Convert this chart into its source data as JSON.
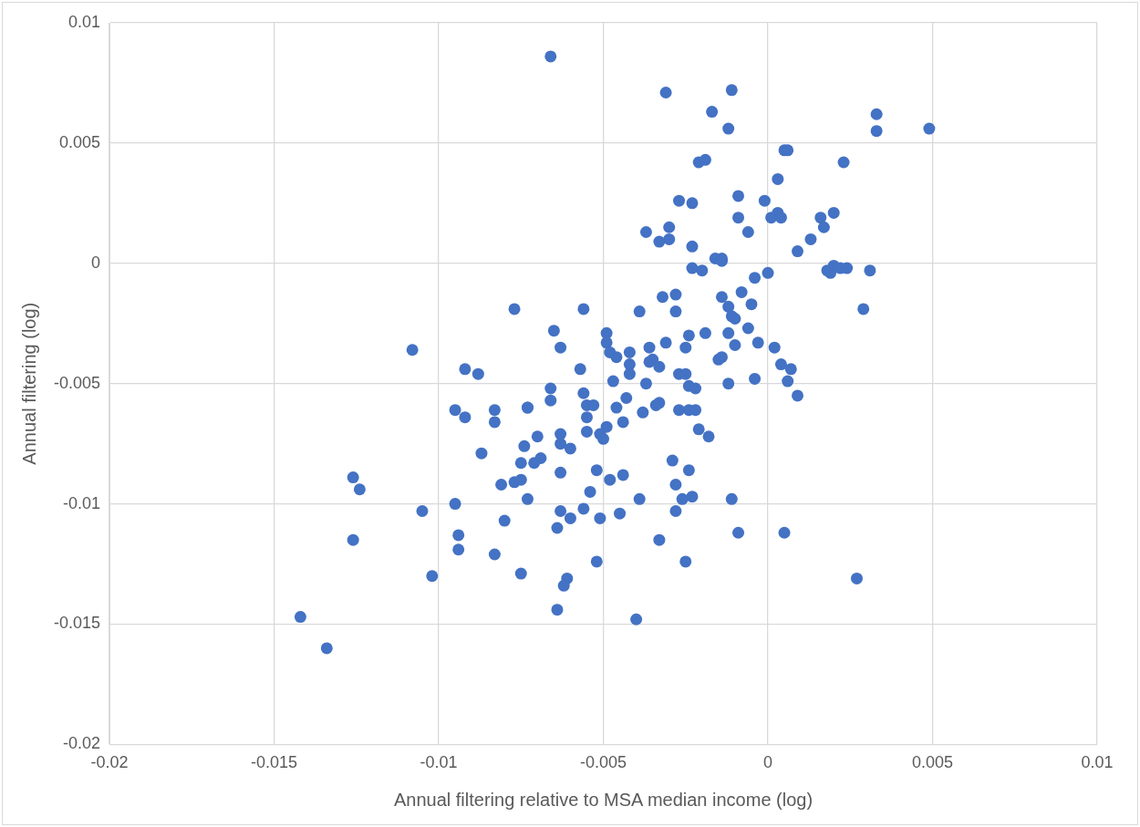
{
  "chart_data": {
    "type": "scatter",
    "xlabel": "Annual filtering relative to MSA median income (log)",
    "ylabel": "Annual filtering (log)",
    "xlim": [
      -0.02,
      0.01
    ],
    "xticks": [
      -0.02,
      -0.015,
      -0.01,
      -0.005,
      0,
      0.005,
      0.01
    ],
    "ylim": [
      -0.02,
      0.01
    ],
    "yticks": [
      -0.02,
      -0.015,
      -0.01,
      -0.005,
      0,
      0.005,
      0.01
    ],
    "grid": true,
    "marker": "circle",
    "series": [
      {
        "color": "#4472c4",
        "x": [
          -0.0066,
          -0.0031,
          -0.0011,
          -0.0017,
          -0.0012,
          0.0033,
          0.0033,
          0.0049,
          0.0005,
          0.0006,
          -0.0021,
          -0.0019,
          0.0023,
          0.0003,
          -0.0027,
          -0.0023,
          -0.0009,
          -0.0001,
          0.0003,
          0.0001,
          0.0004,
          -0.0009,
          0.0016,
          0.002,
          0.0017,
          -0.003,
          -0.003,
          -0.0037,
          -0.0033,
          -0.0006,
          -0.0023,
          0.0013,
          0.0009,
          -0.0023,
          -0.002,
          -0.0016,
          -0.0014,
          -0.0014,
          0,
          -0.0004,
          0.0018,
          0.0019,
          0.002,
          0.0022,
          0.0024,
          0.0031,
          0.0029,
          -0.0008,
          -0.0028,
          -0.0032,
          -0.0014,
          -0.0012,
          -0.0011,
          -0.0005,
          -0.0006,
          -0.0003,
          0.0002,
          -0.001,
          -0.0012,
          -0.0019,
          -0.0024,
          -0.0028,
          -0.0031,
          -0.0039,
          -0.0049,
          -0.0049,
          -0.0048,
          -0.0046,
          -0.0042,
          -0.0042,
          -0.0042,
          -0.0047,
          -0.0036,
          -0.0035,
          -0.0033,
          -0.0036,
          -0.0025,
          -0.0015,
          -0.0014,
          -0.001,
          -0.0027,
          -0.0025,
          -0.0024,
          -0.0022,
          -0.0037,
          -0.0012,
          -0.0004,
          0.0004,
          0.0007,
          0.0006,
          0.0009,
          -0.0065,
          -0.0063,
          -0.0057,
          -0.0056,
          -0.0077,
          -0.0108,
          -0.0092,
          -0.0088,
          -0.0066,
          -0.0066,
          -0.0073,
          -0.0056,
          -0.0055,
          -0.0055,
          -0.0053,
          -0.0049,
          -0.0051,
          -0.0055,
          -0.005,
          -0.0046,
          -0.0044,
          -0.0043,
          -0.0038,
          -0.0034,
          -0.0033,
          -0.0027,
          -0.0024,
          -0.0022,
          -0.0021,
          -0.0018,
          -0.0063,
          -0.0063,
          -0.006,
          -0.007,
          -0.0073,
          -0.0074,
          -0.0069,
          -0.0071,
          -0.0075,
          -0.0077,
          -0.0075,
          -0.0073,
          -0.0081,
          -0.0087,
          -0.0083,
          -0.0083,
          -0.0095,
          -0.0092,
          -0.008,
          -0.0075,
          -0.0083,
          -0.0095,
          -0.0094,
          -0.0094,
          -0.0105,
          -0.0102,
          -0.0126,
          -0.0124,
          -0.0126,
          -0.0142,
          -0.0134,
          -0.0063,
          -0.0064,
          -0.006,
          -0.0063,
          -0.0061,
          -0.0062,
          -0.0064,
          -0.0052,
          -0.0054,
          -0.0056,
          -0.0051,
          -0.0052,
          -0.0048,
          -0.0044,
          -0.0045,
          -0.0039,
          -0.004,
          -0.0033,
          -0.0029,
          -0.0024,
          -0.0028,
          -0.0028,
          -0.0026,
          -0.0023,
          -0.0025,
          -0.0011,
          -0.0009,
          0.0005,
          0.0027
        ],
        "values": [
          0.0086,
          0.0071,
          0.0072,
          0.0063,
          0.0056,
          0.0062,
          0.0055,
          0.0056,
          0.0047,
          0.0047,
          0.0042,
          0.0043,
          0.0042,
          0.0035,
          0.0026,
          0.0025,
          0.0028,
          0.0026,
          0.0021,
          0.0019,
          0.0019,
          0.0019,
          0.0019,
          0.0021,
          0.0015,
          0.0015,
          0.001,
          0.0013,
          0.0009,
          0.0013,
          0.0007,
          0.001,
          0.0005,
          -0.0002,
          -0.0003,
          0.0002,
          0.0002,
          0.0001,
          -0.0004,
          -0.0006,
          -0.0003,
          -0.0004,
          -0.0001,
          -0.0002,
          -0.0002,
          -0.0003,
          -0.0019,
          -0.0012,
          -0.0013,
          -0.0014,
          -0.0014,
          -0.0018,
          -0.0022,
          -0.0017,
          -0.0027,
          -0.0033,
          -0.0035,
          -0.0023,
          -0.0029,
          -0.0029,
          -0.003,
          -0.002,
          -0.0033,
          -0.002,
          -0.0029,
          -0.0033,
          -0.0037,
          -0.0039,
          -0.0037,
          -0.0042,
          -0.0046,
          -0.0049,
          -0.0035,
          -0.004,
          -0.0043,
          -0.0041,
          -0.0035,
          -0.004,
          -0.0039,
          -0.0034,
          -0.0046,
          -0.0046,
          -0.0051,
          -0.0052,
          -0.005,
          -0.005,
          -0.0048,
          -0.0042,
          -0.0044,
          -0.0049,
          -0.0055,
          -0.0028,
          -0.0035,
          -0.0044,
          -0.0019,
          -0.0019,
          -0.0036,
          -0.0044,
          -0.0046,
          -0.0052,
          -0.0057,
          -0.006,
          -0.0054,
          -0.0059,
          -0.0064,
          -0.0059,
          -0.0068,
          -0.0071,
          -0.007,
          -0.0073,
          -0.006,
          -0.0066,
          -0.0056,
          -0.0062,
          -0.0059,
          -0.0058,
          -0.0061,
          -0.0061,
          -0.0061,
          -0.0069,
          -0.0072,
          -0.0071,
          -0.0075,
          -0.0077,
          -0.0072,
          -0.006,
          -0.0076,
          -0.0081,
          -0.0083,
          -0.0083,
          -0.0091,
          -0.009,
          -0.0098,
          -0.0092,
          -0.0079,
          -0.0061,
          -0.0066,
          -0.0061,
          -0.0064,
          -0.0107,
          -0.0129,
          -0.0121,
          -0.01,
          -0.0113,
          -0.0119,
          -0.0103,
          -0.013,
          -0.0089,
          -0.0094,
          -0.0115,
          -0.0147,
          -0.016,
          -0.0103,
          -0.011,
          -0.0106,
          -0.0087,
          -0.0131,
          -0.0134,
          -0.0144,
          -0.0086,
          -0.0095,
          -0.0102,
          -0.0106,
          -0.0124,
          -0.009,
          -0.0088,
          -0.0104,
          -0.0098,
          -0.0148,
          -0.0115,
          -0.0082,
          -0.0086,
          -0.0092,
          -0.0103,
          -0.0098,
          -0.0097,
          -0.0124,
          -0.0098,
          -0.0112,
          -0.0112,
          -0.0131
        ]
      }
    ]
  }
}
